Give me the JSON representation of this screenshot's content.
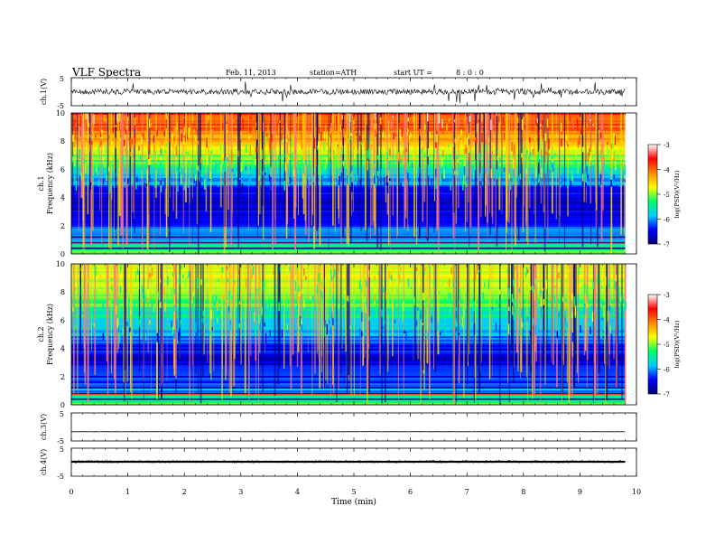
{
  "header": {
    "title": "VLF Spectra",
    "date": "Feb. 11, 2013",
    "station": "station=ATH",
    "start_label": "start  UT =",
    "start_value": "8 : 0 : 0"
  },
  "chart_data": [
    {
      "type": "line",
      "panel": "ch1-waveform",
      "ylabel": "ch.1(V)",
      "ylim": [
        -5,
        5
      ],
      "yticks": [
        "5",
        "-5"
      ],
      "series": [
        {
          "x": [
            0,
            9.8
          ],
          "y": [
            0,
            0
          ],
          "amplitude_V": 1.0
        }
      ]
    },
    {
      "type": "heatmap",
      "panel": "ch1-spectrogram",
      "ylabel_line1": "ch.1",
      "ylabel_line2": "Frequency  (kHz)",
      "ylim": [
        0,
        10
      ],
      "yticks": [
        "0",
        "2",
        "4",
        "6",
        "8",
        "10"
      ],
      "x_extent_min": [
        0,
        9.8
      ],
      "colorbar": {
        "label": "log(PSD)(V²/Hz)",
        "range": [
          -7,
          -3
        ],
        "ticks": [
          "-3",
          "-4",
          "-5",
          "-6",
          "-7"
        ]
      },
      "frequency_profile_logpsd": [
        {
          "f_khz": 0.0,
          "v": -5.0
        },
        {
          "f_khz": 1.0,
          "v": -5.8
        },
        {
          "f_khz": 2.0,
          "v": -6.3
        },
        {
          "f_khz": 3.0,
          "v": -6.5
        },
        {
          "f_khz": 4.0,
          "v": -6.6
        },
        {
          "f_khz": 5.0,
          "v": -6.1
        },
        {
          "f_khz": 6.0,
          "v": -5.5
        },
        {
          "f_khz": 7.0,
          "v": -4.9
        },
        {
          "f_khz": 8.0,
          "v": -4.4
        },
        {
          "f_khz": 9.0,
          "v": -4.0
        },
        {
          "f_khz": 10.0,
          "v": -3.7
        }
      ]
    },
    {
      "type": "heatmap",
      "panel": "ch2-spectrogram",
      "ylabel_line1": "ch.2",
      "ylabel_line2": "Frequency  (kHz)",
      "ylim": [
        0,
        10
      ],
      "yticks": [
        "0",
        "2",
        "4",
        "6",
        "8",
        "10"
      ],
      "x_extent_min": [
        0,
        9.8
      ],
      "colorbar": {
        "label": "log(PSD)(V²/Hz)",
        "range": [
          -7,
          -3
        ],
        "ticks": [
          "-3",
          "-4",
          "-5",
          "-6",
          "-7"
        ]
      },
      "frequency_profile_logpsd": [
        {
          "f_khz": 0.0,
          "v": -5.2
        },
        {
          "f_khz": 1.0,
          "v": -6.0
        },
        {
          "f_khz": 2.0,
          "v": -6.4
        },
        {
          "f_khz": 3.0,
          "v": -6.5
        },
        {
          "f_khz": 4.0,
          "v": -6.4
        },
        {
          "f_khz": 5.0,
          "v": -6.0
        },
        {
          "f_khz": 6.0,
          "v": -5.6
        },
        {
          "f_khz": 7.0,
          "v": -5.3
        },
        {
          "f_khz": 8.0,
          "v": -5.0
        },
        {
          "f_khz": 9.0,
          "v": -4.8
        },
        {
          "f_khz": 10.0,
          "v": -4.7
        }
      ]
    },
    {
      "type": "line",
      "panel": "ch3-waveform",
      "ylabel": "ch.3(V)",
      "ylim": [
        -5,
        5
      ],
      "yticks": [
        "5",
        "-5"
      ],
      "series": [
        {
          "x": [
            0,
            9.8
          ],
          "y": [
            -1.7,
            -1.7
          ],
          "amplitude_V": 0.05
        }
      ]
    },
    {
      "type": "line",
      "panel": "ch4-waveform",
      "ylabel": "ch.4(V)",
      "ylim": [
        -5,
        5
      ],
      "yticks": [
        "5",
        "-5"
      ],
      "series": [
        {
          "x": [
            0,
            9.8
          ],
          "y": [
            0.2,
            0.2
          ],
          "amplitude_V": 0.4
        }
      ]
    }
  ],
  "x_axis": {
    "label": "Time  (min)",
    "range": [
      0,
      10
    ],
    "ticks": [
      "0",
      "1",
      "2",
      "3",
      "4",
      "5",
      "6",
      "7",
      "8",
      "9",
      "10"
    ]
  },
  "colors": {
    "background": "#ffffff",
    "trace": "#000000",
    "colormap": [
      "#000070",
      "#0000ff",
      "#00ccff",
      "#00ff66",
      "#ffff00",
      "#ff8800",
      "#ff0000",
      "#ffffff"
    ]
  }
}
